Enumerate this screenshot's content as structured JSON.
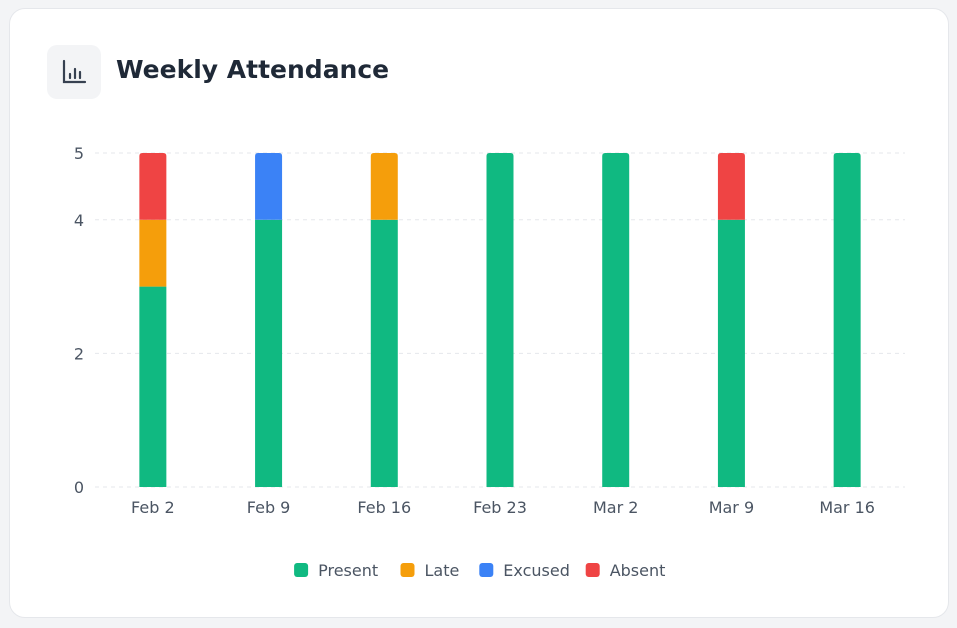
{
  "header": {
    "title": "Weekly Attendance",
    "icon": "bar-chart-icon"
  },
  "chart_data": {
    "type": "bar",
    "stacked": true,
    "categories": [
      "Feb 2",
      "Feb 9",
      "Feb 16",
      "Feb 23",
      "Mar 2",
      "Mar 9",
      "Mar 16"
    ],
    "series": [
      {
        "name": "Present",
        "color": "#10b981",
        "values": [
          3,
          4,
          4,
          5,
          5,
          4,
          5
        ]
      },
      {
        "name": "Late",
        "color": "#f59e0b",
        "values": [
          1,
          0,
          1,
          0,
          0,
          0,
          0
        ]
      },
      {
        "name": "Excused",
        "color": "#3b82f6",
        "values": [
          0,
          1,
          0,
          0,
          0,
          0,
          0
        ]
      },
      {
        "name": "Absent",
        "color": "#ef4444",
        "values": [
          1,
          0,
          0,
          0,
          0,
          1,
          0
        ]
      }
    ],
    "yticks": [
      0,
      2,
      4,
      5
    ],
    "ylim": [
      0,
      5
    ],
    "grid": true,
    "legend": "bottom"
  }
}
